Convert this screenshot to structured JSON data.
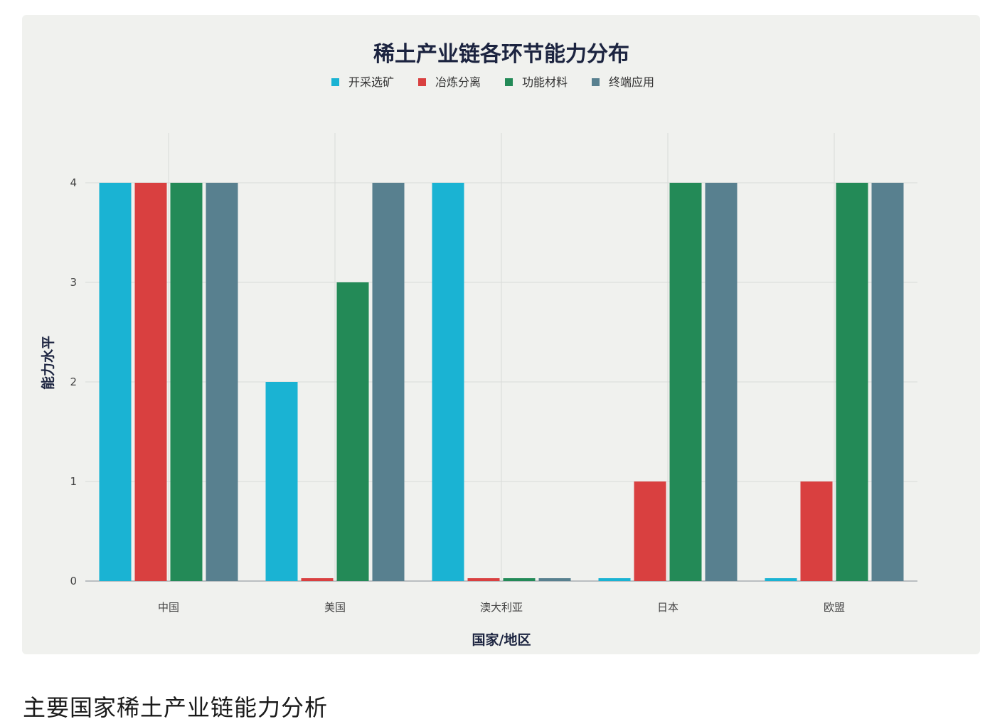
{
  "caption": "主要国家稀土产业链能力分析",
  "chart_data": {
    "type": "bar",
    "title": "稀土产业链各环节能力分布",
    "xlabel": "国家/地区",
    "ylabel": "能力水平",
    "categories": [
      "中国",
      "美国",
      "澳大利亚",
      "日本",
      "欧盟"
    ],
    "ylim": [
      0,
      4
    ],
    "yticks": [
      0,
      1,
      2,
      3,
      4
    ],
    "grid": true,
    "legend_position": "top-center",
    "series": [
      {
        "name": "开采选矿",
        "color": "#1ab3d3",
        "values": [
          4,
          2,
          4,
          0,
          0
        ]
      },
      {
        "name": "冶炼分离",
        "color": "#d94040",
        "values": [
          4,
          0,
          0,
          1,
          1
        ]
      },
      {
        "name": "功能材料",
        "color": "#238a57",
        "values": [
          4,
          3,
          0,
          4,
          4
        ]
      },
      {
        "name": "终端应用",
        "color": "#58808f",
        "values": [
          4,
          4,
          0,
          4,
          4
        ]
      }
    ]
  }
}
